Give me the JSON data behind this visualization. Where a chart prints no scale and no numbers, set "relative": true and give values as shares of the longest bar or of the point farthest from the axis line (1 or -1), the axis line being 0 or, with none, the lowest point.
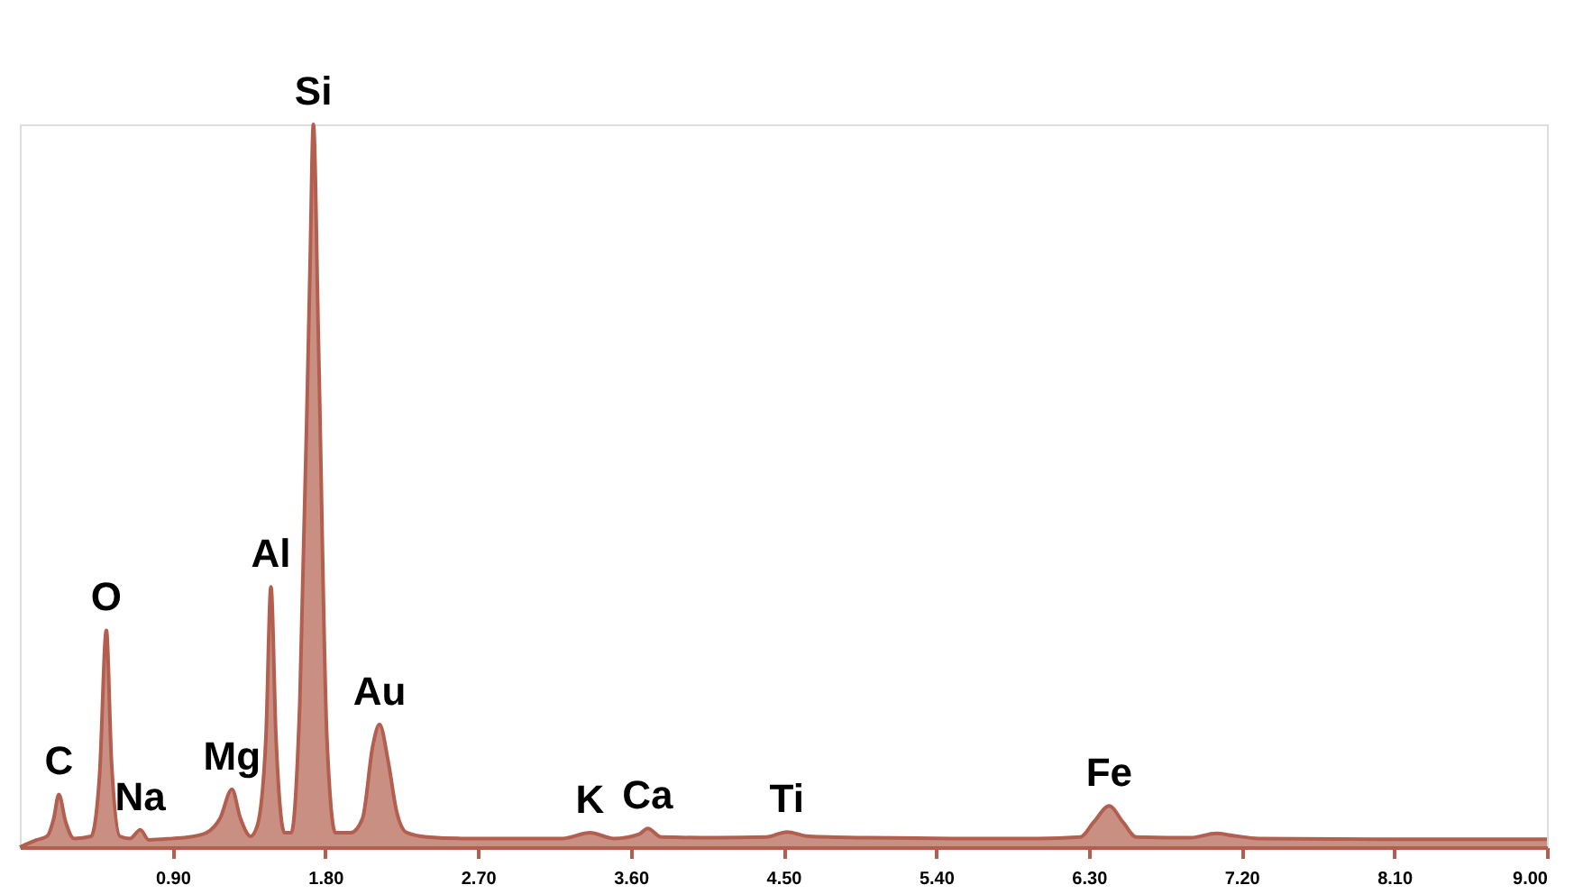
{
  "chart_data": {
    "type": "area",
    "relative": true,
    "grid": false,
    "xlim": [
      0,
      9.0
    ],
    "xticks": [
      {
        "value": 0.9,
        "label": "0.90"
      },
      {
        "value": 1.8,
        "label": "1.80"
      },
      {
        "value": 2.7,
        "label": "2.70"
      },
      {
        "value": 3.6,
        "label": "3.60"
      },
      {
        "value": 4.5,
        "label": "4.50"
      },
      {
        "value": 5.4,
        "label": "5.40"
      },
      {
        "value": 6.3,
        "label": "6.30"
      },
      {
        "value": 7.2,
        "label": "7.20"
      },
      {
        "value": 8.1,
        "label": "8.10"
      },
      {
        "value": 9.0,
        "label": "9.00"
      }
    ],
    "x": [
      0.0,
      0.1,
      0.16,
      0.2,
      0.23,
      0.27,
      0.32,
      0.42,
      0.47,
      0.51,
      0.54,
      0.59,
      0.65,
      0.71,
      0.76,
      0.9,
      1.0,
      1.1,
      1.18,
      1.25,
      1.3,
      1.36,
      1.4,
      1.45,
      1.48,
      1.51,
      1.56,
      1.6,
      1.65,
      1.71,
      1.73,
      1.76,
      1.81,
      1.86,
      1.95,
      2.02,
      2.08,
      2.12,
      2.17,
      2.22,
      2.28,
      2.4,
      2.6,
      2.9,
      3.2,
      3.36,
      3.5,
      3.65,
      3.7,
      3.78,
      4.1,
      4.4,
      4.52,
      4.65,
      5.0,
      5.5,
      6.0,
      6.25,
      6.33,
      6.42,
      6.5,
      6.58,
      6.9,
      7.05,
      7.15,
      7.3,
      8.0,
      8.5,
      9.0
    ],
    "series": [
      {
        "color": "#b35f4f",
        "values": [
          0.0,
          0.01,
          0.015,
          0.04,
          0.073,
          0.035,
          0.012,
          0.015,
          0.1,
          0.3,
          0.12,
          0.015,
          0.012,
          0.024,
          0.01,
          0.012,
          0.014,
          0.02,
          0.04,
          0.08,
          0.04,
          0.015,
          0.03,
          0.15,
          0.36,
          0.15,
          0.02,
          0.02,
          0.2,
          0.8,
          1.0,
          0.7,
          0.15,
          0.02,
          0.02,
          0.04,
          0.14,
          0.17,
          0.12,
          0.05,
          0.02,
          0.014,
          0.012,
          0.012,
          0.012,
          0.02,
          0.012,
          0.018,
          0.026,
          0.014,
          0.013,
          0.014,
          0.021,
          0.015,
          0.013,
          0.012,
          0.012,
          0.014,
          0.035,
          0.057,
          0.035,
          0.014,
          0.013,
          0.019,
          0.016,
          0.012,
          0.011,
          0.011,
          0.011
        ]
      }
    ],
    "annotations": [
      {
        "text": "C",
        "x": 0.23,
        "y": 0.073
      },
      {
        "text": "O",
        "x": 0.51,
        "y": 0.3
      },
      {
        "text": "Na",
        "x": 0.71,
        "y": 0.024
      },
      {
        "text": "Mg",
        "x": 1.25,
        "y": 0.08
      },
      {
        "text": "Al",
        "x": 1.48,
        "y": 0.36
      },
      {
        "text": "Si",
        "x": 1.73,
        "y": 1.0
      },
      {
        "text": "Au",
        "x": 2.12,
        "y": 0.17
      },
      {
        "text": "K",
        "x": 3.36,
        "y": 0.02
      },
      {
        "text": "Ca",
        "x": 3.7,
        "y": 0.026
      },
      {
        "text": "Ti",
        "x": 4.52,
        "y": 0.021
      },
      {
        "text": "Fe",
        "x": 6.42,
        "y": 0.057
      }
    ]
  }
}
